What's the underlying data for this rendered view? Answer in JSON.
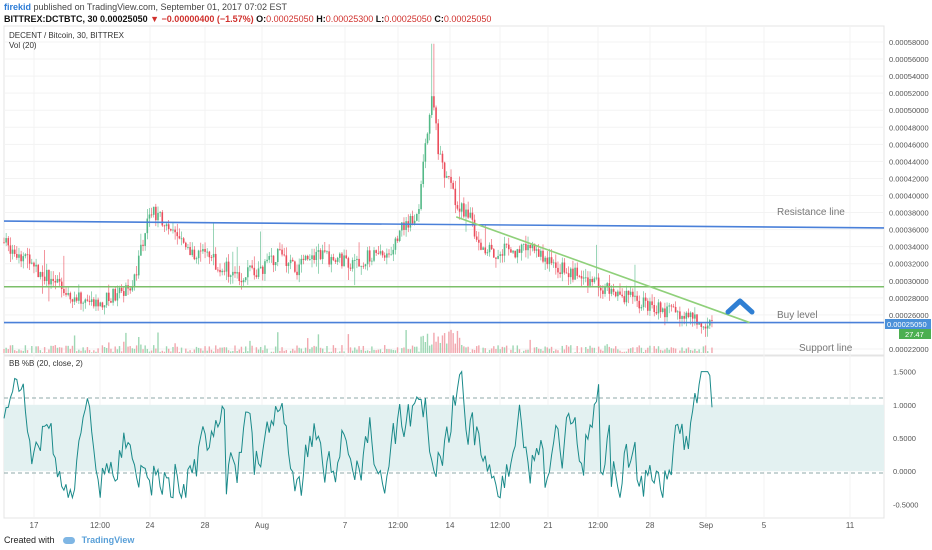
{
  "header": {
    "author": "firekid",
    "published": "published on TradingView.com, September 01, 2017 07:02 EST",
    "symbol": "BITTREX:DCTBTC, 30",
    "last": "0.00025050",
    "change": "−0.00000400 (−1.57%)",
    "ohlc": [
      {
        "k": "O:",
        "v": "0.00025050"
      },
      {
        "k": "H:",
        "v": "0.00025300"
      },
      {
        "k": "L:",
        "v": "0.00025050"
      },
      {
        "k": "C:",
        "v": "0.00025050"
      }
    ]
  },
  "price_pane": {
    "legend_title": "DECENT / Bitcoin, 30, BITTREX",
    "legend_vol": "Vol (20)",
    "last_price_label": "0.00025050",
    "volume_label": "27.47",
    "volume_label_color": "#4caf50",
    "last_price_color": "#4a90d9",
    "annotations": [
      "Resistance line",
      "Buy level",
      "Support line"
    ]
  },
  "indicator_pane": {
    "legend_title": "BB %B (20, close, 2)",
    "line_color": "#1a8a8a",
    "band_fill": "#e3f1f1"
  },
  "footer": {
    "created_with": "Created with",
    "brand": "TradingView"
  },
  "chart_data": [
    {
      "type": "candlestick",
      "title": "DECENT / Bitcoin, 30, BITTREX",
      "x_ticks": [
        "17",
        "12:00",
        "24",
        "28",
        "Aug",
        "7",
        "12:00",
        "14",
        "12:00",
        "21",
        "12:00",
        "28",
        "Sep",
        "5",
        "11"
      ],
      "y_ticks": [
        "0.00058000",
        "0.00056000",
        "0.00054000",
        "0.00052000",
        "0.00050000",
        "0.00048000",
        "0.00046000",
        "0.00044000",
        "0.00042000",
        "0.00040000",
        "0.00038000",
        "0.00036000",
        "0.00034000",
        "0.00032000",
        "0.00030000",
        "0.00028000",
        "0.00026000",
        "0.00022000"
      ],
      "ylim": [
        0.00022,
        0.00058
      ],
      "price_path": [
        [
          0,
          0.000345
        ],
        [
          3,
          0.00033
        ],
        [
          6,
          0.00031
        ],
        [
          9,
          0.000295
        ],
        [
          12,
          0.00028
        ],
        [
          15,
          0.000272
        ],
        [
          18,
          0.000283
        ],
        [
          21,
          0.000295
        ],
        [
          24,
          0.000382
        ],
        [
          27,
          0.000362
        ],
        [
          30,
          0.000335
        ],
        [
          33,
          0.00033
        ],
        [
          36,
          0.000315
        ],
        [
          39,
          0.000305
        ],
        [
          42,
          0.000315
        ],
        [
          45,
          0.00033
        ],
        [
          48,
          0.000312
        ],
        [
          51,
          0.000335
        ],
        [
          54,
          0.000325
        ],
        [
          57,
          0.00032
        ],
        [
          60,
          0.00033
        ],
        [
          63,
          0.000332
        ],
        [
          65,
          0.000362
        ],
        [
          68,
          0.000385
        ],
        [
          69,
          0.000465
        ],
        [
          70,
          0.00052
        ],
        [
          71,
          0.000458
        ],
        [
          72,
          0.00043
        ],
        [
          74,
          0.000392
        ],
        [
          76,
          0.000378
        ],
        [
          78,
          0.000342
        ],
        [
          80,
          0.00033
        ],
        [
          82,
          0.000338
        ],
        [
          84,
          0.000335
        ],
        [
          86,
          0.000345
        ],
        [
          88,
          0.00033
        ],
        [
          90,
          0.000318
        ],
        [
          92,
          0.000315
        ],
        [
          94,
          0.000305
        ],
        [
          96,
          0.0003
        ],
        [
          98,
          0.00029
        ],
        [
          100,
          0.000285
        ],
        [
          102,
          0.00028
        ],
        [
          104,
          0.000275
        ],
        [
          106,
          0.00027
        ],
        [
          108,
          0.000265
        ],
        [
          110,
          0.000262
        ],
        [
          112,
          0.000256
        ],
        [
          114,
          0.000254
        ],
        [
          116,
          0.0002505
        ]
      ],
      "x_range": [
        0,
        144
      ],
      "extreme_high": 0.000578,
      "trend_lines": [
        {
          "name": "Resistance line",
          "from": [
            0,
            0.00037
          ],
          "to": [
            144,
            0.000362
          ],
          "color": "#4a80d9"
        },
        {
          "name": "Buy level",
          "from": [
            0,
            0.000293
          ],
          "to": [
            144,
            0.000293
          ],
          "color": "#7cbf6a"
        },
        {
          "name": "Support line",
          "from": [
            0,
            0.000251
          ],
          "to": [
            144,
            0.000251
          ],
          "color": "#4a80d9"
        },
        {
          "name": "Downtrend",
          "from": [
            74,
            0.000375
          ],
          "to": [
            122,
            0.000251
          ],
          "color": "#8fd07a"
        }
      ]
    },
    {
      "type": "line",
      "title": "BB %B (20, close, 2)",
      "y_ticks": [
        "1.5000",
        "1.0000",
        "0.5000",
        "0.0000",
        "-0.5000"
      ],
      "ylim": [
        -0.6,
        1.6
      ],
      "band": [
        0,
        1
      ],
      "series_range": [
        -0.4,
        1.5
      ]
    }
  ]
}
